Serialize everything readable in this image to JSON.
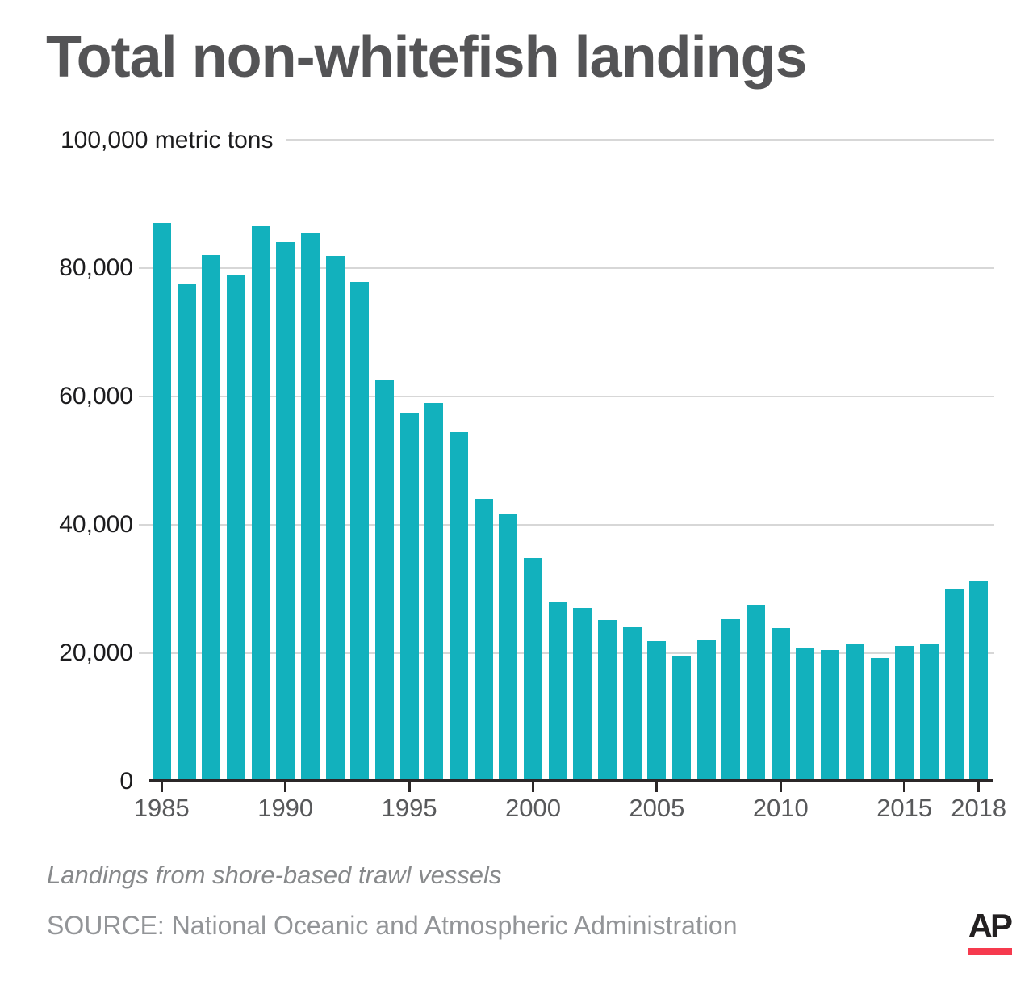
{
  "title": "Total non-whitefish landings",
  "notes": {
    "subtitle": "Landings from shore-based trawl vessels",
    "source": "SOURCE: National Oceanic and Atmospheric Administration"
  },
  "logo": {
    "text": "AP"
  },
  "colors": {
    "bar": "#12b1bd",
    "axis": "#2b2728",
    "gridline": "#d7d7d7",
    "title_text": "#545456",
    "x_tick_label": "#58595b",
    "y_tick_label": "#1c1c1e",
    "note_text": "#87898b",
    "source_text": "#939598",
    "logo_black": "#232021",
    "logo_red": "#f63a4e"
  },
  "chart_data": {
    "type": "bar",
    "title": "Total non-whitefish landings",
    "ylabel": "100,000 metric tons",
    "xlabel": "",
    "ylim": [
      0,
      100000
    ],
    "grid": "horizontal",
    "legend": "none",
    "x": [
      1985,
      1986,
      1987,
      1988,
      1989,
      1990,
      1991,
      1992,
      1993,
      1994,
      1995,
      1996,
      1997,
      1998,
      1999,
      2000,
      2001,
      2002,
      2003,
      2004,
      2005,
      2006,
      2007,
      2008,
      2009,
      2010,
      2011,
      2012,
      2013,
      2014,
      2015,
      2016,
      2017,
      2018
    ],
    "values": [
      87000,
      77500,
      82000,
      79000,
      86600,
      84000,
      85500,
      81900,
      77900,
      62600,
      57500,
      59000,
      54500,
      44000,
      41600,
      34800,
      27900,
      27000,
      25200,
      24100,
      21900,
      19600,
      22200,
      25400,
      27500,
      23900,
      20700,
      20500,
      21400,
      19300,
      21100,
      21400,
      30000,
      31300
    ],
    "y_ticks": [
      {
        "value": 0,
        "label": "0"
      },
      {
        "value": 20000,
        "label": "20,000"
      },
      {
        "value": 40000,
        "label": "40,000"
      },
      {
        "value": 60000,
        "label": "60,000"
      },
      {
        "value": 80000,
        "label": "80,000"
      },
      {
        "value": 100000,
        "label": "100,000 metric tons"
      }
    ],
    "x_tick_years": [
      1985,
      1990,
      1995,
      2000,
      2005,
      2010,
      2015,
      2018
    ]
  }
}
